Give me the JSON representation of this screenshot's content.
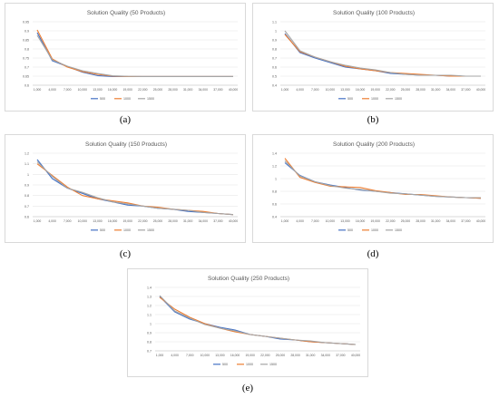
{
  "series_colors": [
    "#4472C4",
    "#ED7D31",
    "#A5A5A5"
  ],
  "chart_data": [
    {
      "id": "a",
      "caption": "(a)",
      "type": "line",
      "title": "Solution Quality (50 Products)",
      "x": [
        "1,000",
        "4,000",
        "7,000",
        "10,000",
        "13,000",
        "16,000",
        "19,000",
        "22,000",
        "25,000",
        "28,000",
        "31,000",
        "34,000",
        "37,000",
        "40,000"
      ],
      "ylim": [
        0.6,
        0.95
      ],
      "yticks": [
        "0.6",
        "0.65",
        "0.7",
        "0.75",
        "0.8",
        "0.85",
        "0.9",
        "0.95"
      ],
      "grid": true,
      "legend": "bottom",
      "series": [
        {
          "name": "500",
          "values": [
            0.89,
            0.735,
            0.703,
            0.672,
            0.653,
            0.648,
            0.648,
            0.648,
            0.648,
            0.648,
            0.648,
            0.648,
            0.648,
            0.648
          ]
        },
        {
          "name": "1000",
          "values": [
            0.905,
            0.745,
            0.7,
            0.675,
            0.66,
            0.65,
            0.648,
            0.648,
            0.648,
            0.648,
            0.648,
            0.648,
            0.648,
            0.648
          ]
        },
        {
          "name": "1500",
          "values": [
            0.875,
            0.74,
            0.705,
            0.68,
            0.665,
            0.652,
            0.649,
            0.648,
            0.648,
            0.648,
            0.648,
            0.648,
            0.648,
            0.648
          ]
        }
      ]
    },
    {
      "id": "b",
      "caption": "(b)",
      "type": "line",
      "title": "Solution Quality (100 Products)",
      "x": [
        "1,000",
        "4,000",
        "7,000",
        "10,000",
        "13,000",
        "16,000",
        "19,000",
        "22,000",
        "25,000",
        "28,000",
        "31,000",
        "34,000",
        "37,000",
        "40,000"
      ],
      "ylim": [
        0.4,
        1.1
      ],
      "yticks": [
        "0.4",
        "0.5",
        "0.6",
        "0.7",
        "0.8",
        "0.9",
        "1",
        "1.1"
      ],
      "grid": true,
      "legend": "bottom",
      "series": [
        {
          "name": "500",
          "values": [
            0.97,
            0.76,
            0.7,
            0.65,
            0.6,
            0.58,
            0.56,
            0.53,
            0.52,
            0.51,
            0.51,
            0.5,
            0.5,
            0.5
          ]
        },
        {
          "name": "1000",
          "values": [
            0.96,
            0.77,
            0.71,
            0.66,
            0.61,
            0.58,
            0.56,
            0.54,
            0.53,
            0.52,
            0.51,
            0.5,
            0.5,
            0.5
          ]
        },
        {
          "name": "1500",
          "values": [
            1.0,
            0.78,
            0.71,
            0.66,
            0.62,
            0.59,
            0.57,
            0.54,
            0.52,
            0.51,
            0.51,
            0.51,
            0.5,
            0.5
          ]
        }
      ]
    },
    {
      "id": "c",
      "caption": "(c)",
      "type": "line",
      "title": "Solution Quality (150 Products)",
      "x": [
        "1,000",
        "4,000",
        "7,000",
        "10,000",
        "13,000",
        "16,000",
        "19,000",
        "22,000",
        "25,000",
        "28,000",
        "31,000",
        "34,000",
        "37,000",
        "40,000"
      ],
      "ylim": [
        0.6,
        1.2
      ],
      "yticks": [
        "0.6",
        "0.7",
        "0.8",
        "0.9",
        "1",
        "1.1",
        "1.2"
      ],
      "grid": true,
      "legend": "bottom",
      "series": [
        {
          "name": "500",
          "values": [
            1.14,
            0.96,
            0.87,
            0.82,
            0.77,
            0.74,
            0.71,
            0.7,
            0.68,
            0.67,
            0.65,
            0.64,
            0.63,
            0.62
          ]
        },
        {
          "name": "1000",
          "values": [
            1.1,
            0.99,
            0.88,
            0.8,
            0.77,
            0.75,
            0.73,
            0.7,
            0.69,
            0.67,
            0.66,
            0.65,
            0.63,
            0.62
          ]
        },
        {
          "name": "1500",
          "values": [
            1.12,
            0.98,
            0.87,
            0.83,
            0.78,
            0.74,
            0.72,
            0.7,
            0.68,
            0.67,
            0.66,
            0.64,
            0.63,
            0.62
          ]
        }
      ]
    },
    {
      "id": "d",
      "caption": "(d)",
      "type": "line",
      "title": "Solution Quality (200 Products)",
      "x": [
        "1,000",
        "4,000",
        "7,000",
        "10,000",
        "13,000",
        "16,000",
        "19,000",
        "22,000",
        "25,000",
        "28,000",
        "31,000",
        "34,000",
        "37,000",
        "40,000"
      ],
      "ylim": [
        0.4,
        1.4
      ],
      "yticks": [
        "0.4",
        "0.6",
        "0.8",
        "1",
        "1.2",
        "1.4"
      ],
      "grid": true,
      "legend": "bottom",
      "series": [
        {
          "name": "500",
          "values": [
            1.25,
            1.05,
            0.95,
            0.9,
            0.86,
            0.82,
            0.8,
            0.78,
            0.76,
            0.74,
            0.72,
            0.71,
            0.7,
            0.69
          ]
        },
        {
          "name": "1000",
          "values": [
            1.32,
            1.02,
            0.94,
            0.88,
            0.87,
            0.86,
            0.81,
            0.78,
            0.75,
            0.75,
            0.73,
            0.71,
            0.7,
            0.69
          ]
        },
        {
          "name": "1500",
          "values": [
            1.28,
            1.04,
            0.95,
            0.89,
            0.85,
            0.83,
            0.8,
            0.77,
            0.76,
            0.74,
            0.72,
            0.71,
            0.7,
            0.7
          ]
        }
      ]
    },
    {
      "id": "e",
      "caption": "(e)",
      "type": "line",
      "title": "Solution Quality (250 Products)",
      "x": [
        "1,000",
        "4,000",
        "7,000",
        "10,000",
        "13,000",
        "16,000",
        "19,000",
        "22,000",
        "25,000",
        "28,000",
        "31,000",
        "34,000",
        "37,000",
        "40,000"
      ],
      "ylim": [
        0.7,
        1.4
      ],
      "yticks": [
        "0.7",
        "0.8",
        "0.9",
        "1",
        "1.1",
        "1.2",
        "1.3",
        "1.4"
      ],
      "grid": true,
      "legend": "bottom",
      "series": [
        {
          "name": "500",
          "values": [
            1.3,
            1.13,
            1.05,
            1.0,
            0.96,
            0.93,
            0.88,
            0.86,
            0.83,
            0.82,
            0.8,
            0.79,
            0.78,
            0.77
          ]
        },
        {
          "name": "1000",
          "values": [
            1.29,
            1.16,
            1.07,
            1.0,
            0.95,
            0.91,
            0.88,
            0.86,
            0.84,
            0.82,
            0.8,
            0.79,
            0.78,
            0.77
          ]
        },
        {
          "name": "1500",
          "values": [
            1.31,
            1.14,
            1.06,
            0.99,
            0.95,
            0.92,
            0.88,
            0.86,
            0.84,
            0.82,
            0.81,
            0.79,
            0.78,
            0.77
          ]
        }
      ]
    }
  ]
}
